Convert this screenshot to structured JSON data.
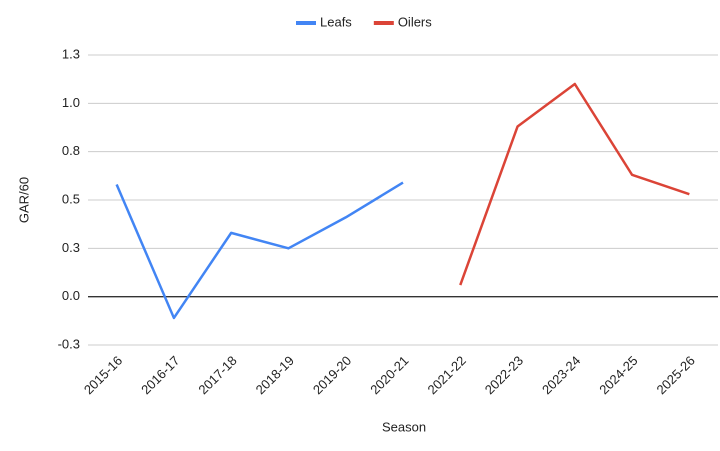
{
  "chart_data": {
    "type": "line",
    "x_label": "Season",
    "y_label": "GAR/60",
    "categories": [
      "2015-16",
      "2016-17",
      "2017-18",
      "2018-19",
      "2019-20",
      "2020-21",
      "2021-22",
      "2022-23",
      "2023-24",
      "2024-25",
      "2025-26"
    ],
    "series": [
      {
        "name": "Leafs",
        "color": "#4285f4",
        "values": [
          0.58,
          -0.11,
          0.33,
          0.25,
          0.41,
          0.59,
          null,
          null,
          null,
          null,
          null
        ]
      },
      {
        "name": "Oilers",
        "color": "#db4437",
        "values": [
          null,
          null,
          null,
          null,
          null,
          null,
          0.06,
          0.88,
          1.1,
          0.63,
          0.53
        ]
      }
    ],
    "ylim": [
      -0.25,
      1.25
    ],
    "yticks": [
      {
        "value": -0.25,
        "label": "-0.3"
      },
      {
        "value": 0,
        "label": "0.0"
      },
      {
        "value": 0.25,
        "label": "0.3"
      },
      {
        "value": 0.5,
        "label": "0.5"
      },
      {
        "value": 0.75,
        "label": "0.8"
      },
      {
        "value": 1.0,
        "label": "1.0"
      },
      {
        "value": 1.25,
        "label": "1.3"
      }
    ],
    "grid": true,
    "legend": "top"
  }
}
